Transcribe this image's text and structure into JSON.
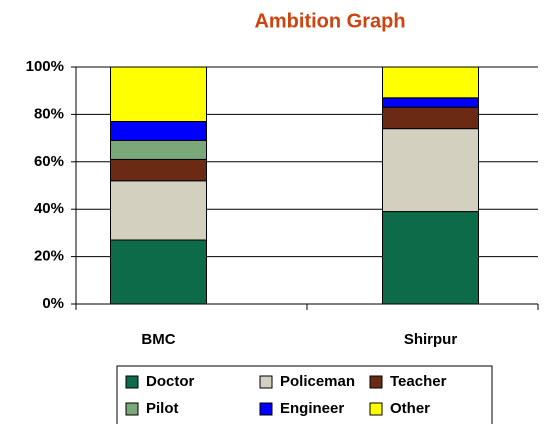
{
  "chart_data": {
    "type": "stacked_bar",
    "title": "Ambition Graph",
    "categories": [
      "BMC",
      "Shirpur"
    ],
    "series": [
      {
        "name": "Doctor",
        "color": "#0d6b4a",
        "values": [
          27,
          39
        ]
      },
      {
        "name": "Policeman",
        "color": "#d4d0c0",
        "values": [
          25,
          35
        ]
      },
      {
        "name": "Teacher",
        "color": "#6b2a14",
        "values": [
          9,
          9
        ]
      },
      {
        "name": "Pilot",
        "color": "#7aa878",
        "values": [
          8,
          0
        ]
      },
      {
        "name": "Engineer",
        "color": "#0000ff",
        "values": [
          8,
          4
        ]
      },
      {
        "name": "Other",
        "color": "#ffff00",
        "values": [
          23,
          13
        ]
      }
    ],
    "ylim": [
      0,
      100
    ],
    "yticks": [
      {
        "value": 0,
        "label": "0%"
      },
      {
        "value": 20,
        "label": "20%"
      },
      {
        "value": 40,
        "label": "40%"
      },
      {
        "value": 60,
        "label": "60%"
      },
      {
        "value": 80,
        "label": "80%"
      },
      {
        "value": 100,
        "label": "100%"
      }
    ],
    "grid": true,
    "legend": "bottom"
  }
}
